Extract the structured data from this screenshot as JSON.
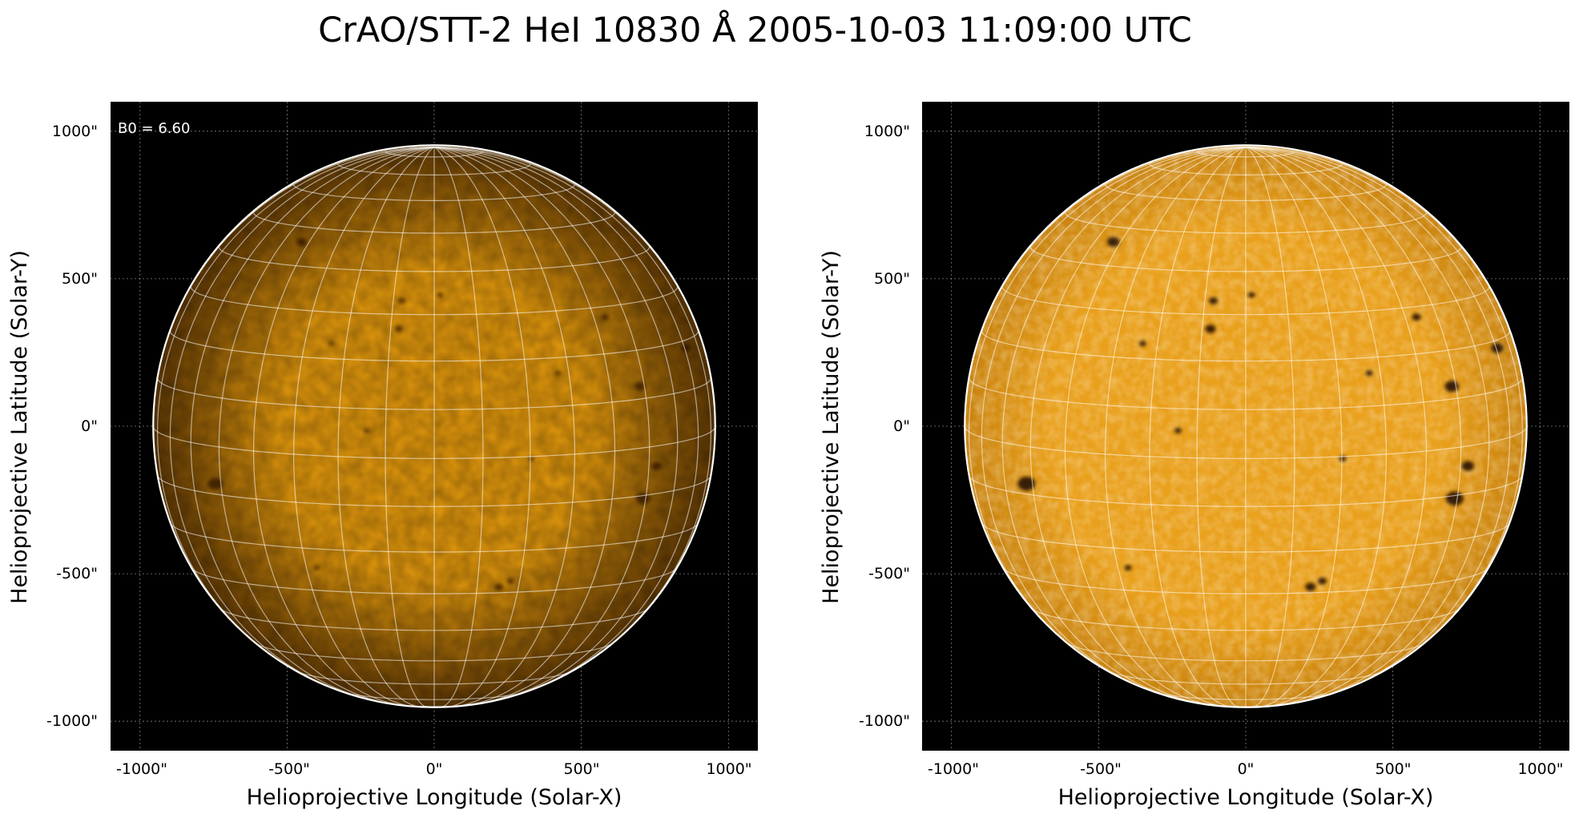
{
  "title": "CrAO/STT-2 HeI 10830 Å 2005-10-03 11:09:00 UTC",
  "colors": {
    "background": "#000000",
    "disk_center_left": "#d9920c",
    "disk_edge_left": "#5a3503",
    "disk_center_right": "#e9a01c",
    "disk_edge_right": "#c88310",
    "grid": "#ffffff",
    "spot": "#120800"
  },
  "panels": [
    {
      "id": "left",
      "xlabel": "Helioprojective Longitude (Solar-X)",
      "ylabel": "Helioprojective Latitude (Solar-Y)",
      "x_ticks": [
        "-1000\"",
        "-500\"",
        "0\"",
        "500\"",
        "1000\""
      ],
      "y_ticks": [
        "1000\"",
        "500\"",
        "0\"",
        "-500\"",
        "-1000\""
      ],
      "annotation": "B0 = 6.60",
      "limb_darkening": "strong"
    },
    {
      "id": "right",
      "xlabel": "Helioprojective Longitude (Solar-X)",
      "ylabel": "Helioprojective Latitude (Solar-Y)",
      "x_ticks": [
        "-1000\"",
        "-500\"",
        "0\"",
        "500\"",
        "1000\""
      ],
      "y_ticks": [
        "1000\"",
        "500\"",
        "0\"",
        "-500\"",
        "-1000\""
      ],
      "annotation": "",
      "limb_darkening": "weak"
    }
  ],
  "axis_range_arcsec": {
    "x": [
      -1100,
      1100
    ],
    "y": [
      -1100,
      1100
    ]
  },
  "tick_values_arcsec": [
    -1000,
    -500,
    0,
    500,
    1000
  ],
  "solar_radius_arcsec": 955,
  "b0_deg": 6.6,
  "grid_spacing_deg": 10,
  "dark_features": [
    {
      "x_arcsec": -745,
      "y_arcsec": -195,
      "size": 1.0
    },
    {
      "x_arcsec": 710,
      "y_arcsec": -245,
      "size": 1.0
    },
    {
      "x_arcsec": 755,
      "y_arcsec": -135,
      "size": 0.7
    },
    {
      "x_arcsec": 700,
      "y_arcsec": 135,
      "size": 0.8
    },
    {
      "x_arcsec": 855,
      "y_arcsec": 265,
      "size": 0.7
    },
    {
      "x_arcsec": -450,
      "y_arcsec": 625,
      "size": 0.7
    },
    {
      "x_arcsec": -110,
      "y_arcsec": 425,
      "size": 0.5
    },
    {
      "x_arcsec": -120,
      "y_arcsec": 330,
      "size": 0.6
    },
    {
      "x_arcsec": 20,
      "y_arcsec": 445,
      "size": 0.4
    },
    {
      "x_arcsec": 580,
      "y_arcsec": 370,
      "size": 0.5
    },
    {
      "x_arcsec": -350,
      "y_arcsec": 280,
      "size": 0.4
    },
    {
      "x_arcsec": -230,
      "y_arcsec": -15,
      "size": 0.4
    },
    {
      "x_arcsec": 220,
      "y_arcsec": -545,
      "size": 0.6
    },
    {
      "x_arcsec": 260,
      "y_arcsec": -525,
      "size": 0.5
    },
    {
      "x_arcsec": -400,
      "y_arcsec": -480,
      "size": 0.4
    },
    {
      "x_arcsec": 330,
      "y_arcsec": -110,
      "size": 0.4
    },
    {
      "x_arcsec": 420,
      "y_arcsec": 180,
      "size": 0.4
    }
  ]
}
